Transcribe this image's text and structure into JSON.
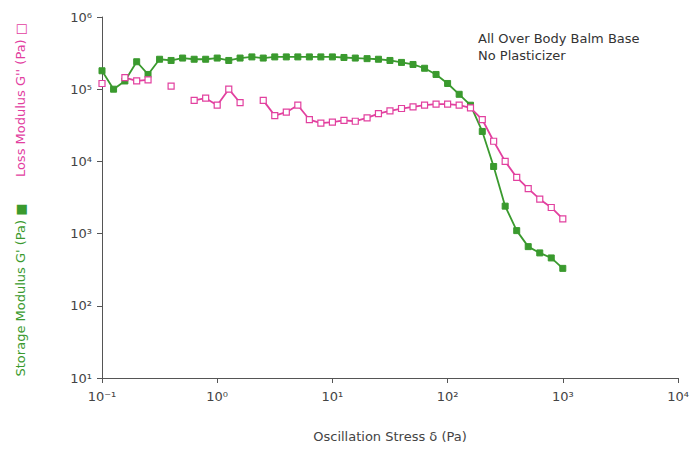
{
  "chart_data": {
    "type": "line",
    "annotations": [
      "All Over Body Balm Base",
      "No Plasticizer"
    ],
    "xlabel": "Oscillation Stress δ (Pa)",
    "log": true,
    "grid": false,
    "xlim": [
      0.1,
      10000
    ],
    "xticks": [
      {
        "value": 0.1,
        "label": "10⁻¹"
      },
      {
        "value": 1,
        "label": "10⁰"
      },
      {
        "value": 10,
        "label": "10¹"
      },
      {
        "value": 100,
        "label": "10²"
      },
      {
        "value": 1000,
        "label": "10³"
      },
      {
        "value": 10000,
        "label": "10⁴"
      }
    ],
    "ylim": [
      10,
      1000000
    ],
    "yticks": [
      {
        "value": 10,
        "label": "10¹"
      },
      {
        "value": 100,
        "label": "10²"
      },
      {
        "value": 1000,
        "label": "10³"
      },
      {
        "value": 10000,
        "label": "10⁴"
      },
      {
        "value": 100000,
        "label": "10⁵"
      },
      {
        "value": 1000000,
        "label": "10⁶"
      }
    ],
    "x": [
      0.1,
      0.126,
      0.158,
      0.2,
      0.251,
      0.316,
      0.398,
      0.501,
      0.631,
      0.794,
      1,
      1.26,
      1.58,
      2,
      2.51,
      3.16,
      3.98,
      5.01,
      6.31,
      7.94,
      10,
      12.6,
      15.8,
      20,
      25.1,
      31.6,
      39.8,
      50.1,
      63.1,
      79.4,
      100,
      126,
      158,
      200,
      251,
      316,
      398,
      501,
      631,
      794,
      1000
    ],
    "series": [
      {
        "name": "Storage Modulus G' (Pa) ■",
        "color": "#3a9a2e",
        "marker": "square_filled",
        "line_style": "solid",
        "values": [
          180000,
          100000,
          130000,
          240000,
          160000,
          260000,
          250000,
          270000,
          260000,
          260000,
          270000,
          250000,
          270000,
          280000,
          270000,
          280000,
          280000,
          280000,
          280000,
          280000,
          280000,
          275000,
          270000,
          265000,
          260000,
          250000,
          235000,
          220000,
          195000,
          160000,
          120000,
          85000,
          60000,
          26000,
          8500,
          2400,
          1100,
          660,
          540,
          460,
          330
        ]
      },
      {
        "name": "Loss Modulus G'' (Pa) □",
        "color": "#e2409f",
        "marker": "square_open",
        "line_style": "solid",
        "values": [
          120000,
          null,
          145000,
          130000,
          135000,
          null,
          110000,
          null,
          70000,
          75000,
          60000,
          100000,
          65000,
          null,
          70000,
          43000,
          48000,
          60000,
          38000,
          34000,
          35000,
          37000,
          36000,
          40000,
          46000,
          50000,
          54000,
          57000,
          60000,
          62000,
          62000,
          60000,
          55000,
          38000,
          19000,
          10000,
          6000,
          4200,
          3000,
          2300,
          1600
        ]
      }
    ]
  }
}
